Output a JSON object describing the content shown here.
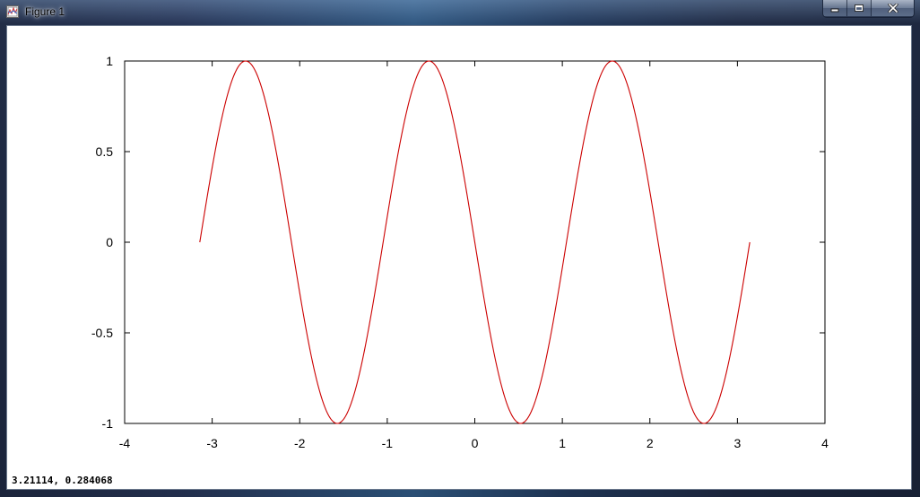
{
  "window": {
    "title": "Figure 1",
    "icon": "figure-icon",
    "controls": [
      "minimize-icon",
      "maximize-icon",
      "close-icon"
    ]
  },
  "status": {
    "cursor_readout": "3.21114,  0.284068"
  },
  "chart_data": {
    "type": "line",
    "title": "",
    "xlabel": "",
    "ylabel": "",
    "xlim": [
      -4,
      4
    ],
    "ylim": [
      -1,
      1
    ],
    "xticks": [
      "-4",
      "-3",
      "-2",
      "-1",
      "0",
      "1",
      "2",
      "3",
      "4"
    ],
    "yticks": [
      "1",
      "0.5",
      "0",
      "-0.5",
      "-1"
    ],
    "grid": false,
    "legend": "none",
    "series": [
      {
        "color": "#cc0000",
        "function": "y = -sin(3x)",
        "x_range": [
          -3.14159,
          3.14159
        ],
        "samples": 400
      }
    ]
  }
}
